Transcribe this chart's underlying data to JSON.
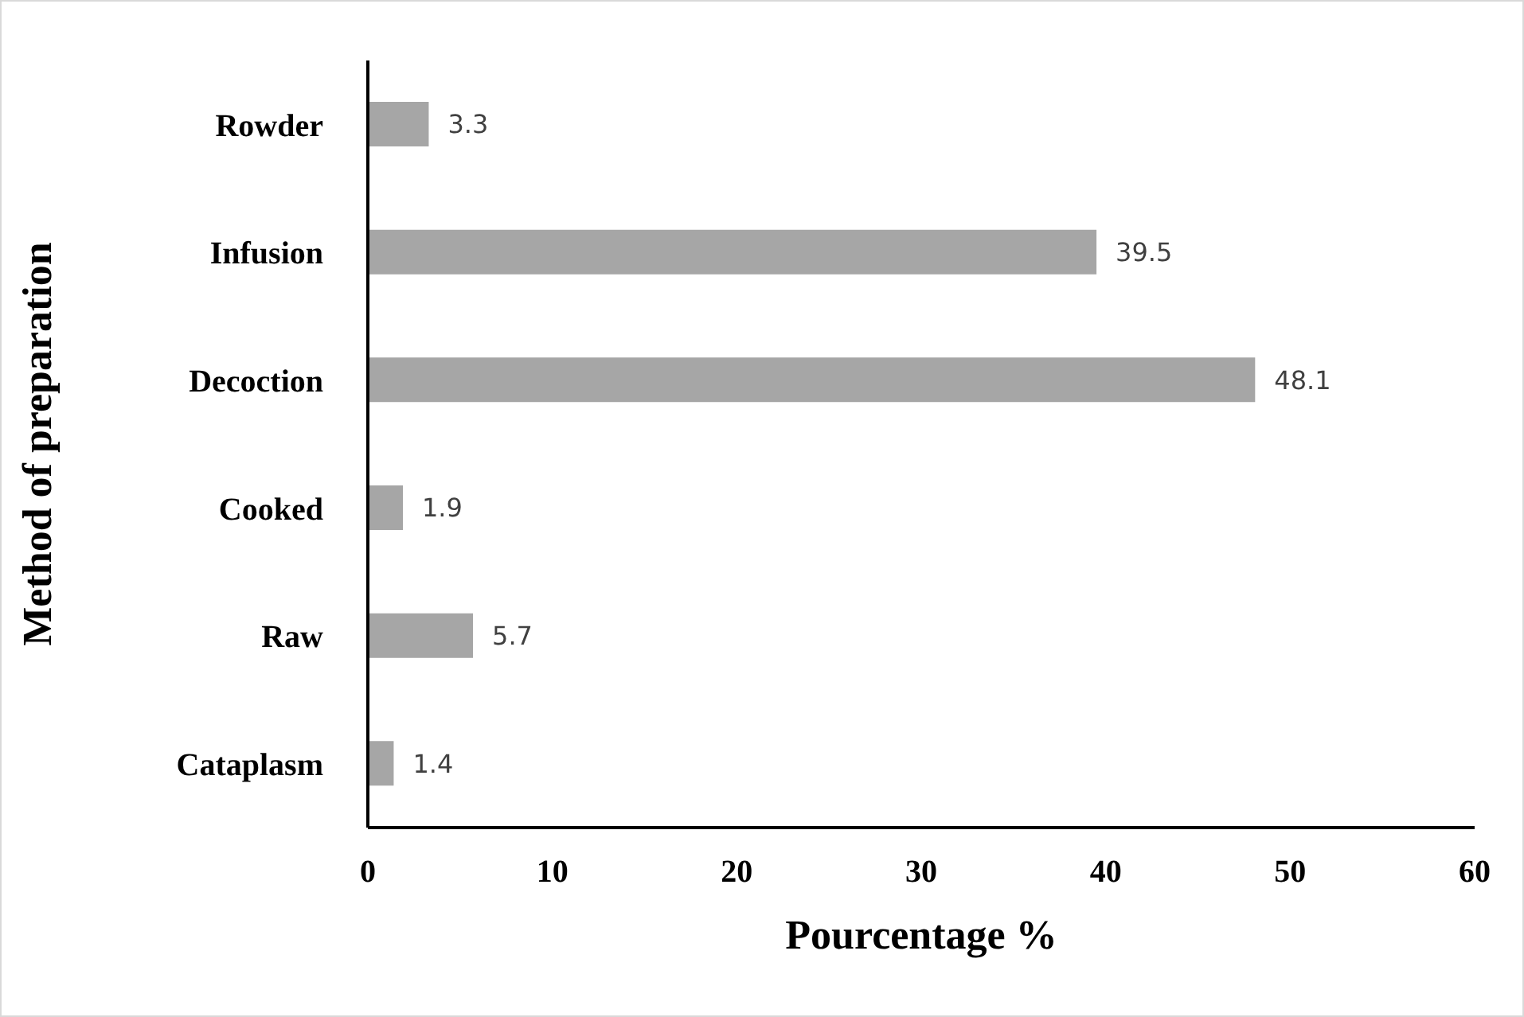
{
  "chart_data": {
    "type": "bar",
    "orientation": "horizontal",
    "xlabel": "Pourcentage %",
    "ylabel": "Method of preparation",
    "categories": [
      "Rowder",
      "Infusion",
      "Decoction",
      "Cooked",
      "Raw",
      "Cataplasm"
    ],
    "values": [
      3.3,
      39.5,
      48.1,
      1.9,
      5.7,
      1.4
    ],
    "color": "#a6a6a6",
    "xlim": [
      0,
      60
    ],
    "xticks": [
      0,
      10,
      20,
      30,
      40,
      50,
      60
    ],
    "grid": false,
    "data_labels": true
  }
}
